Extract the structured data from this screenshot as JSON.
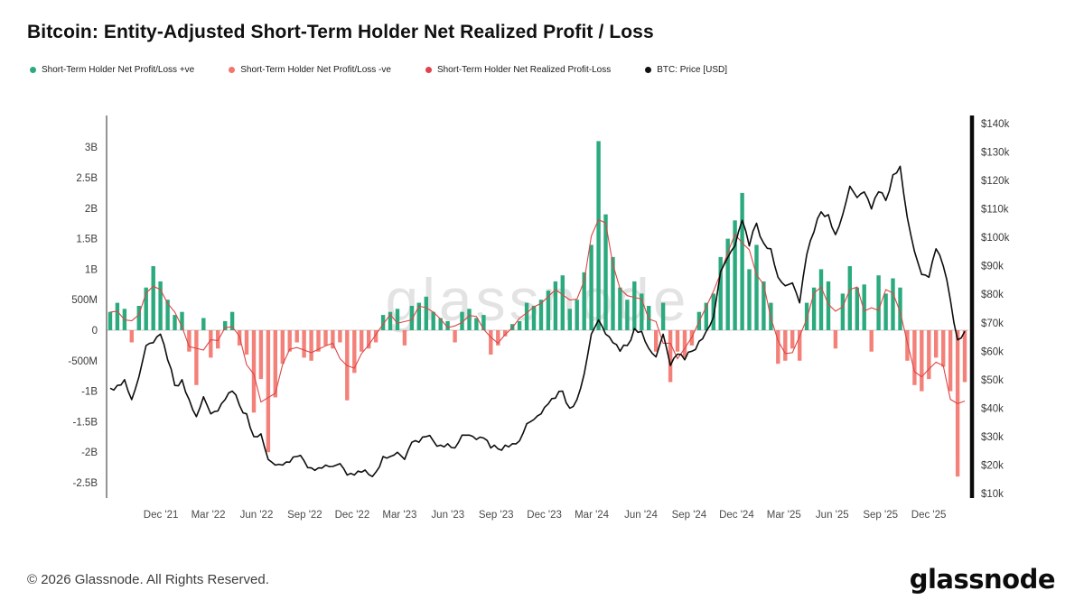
{
  "header": {
    "title": "Bitcoin: Entity-Adjusted Short-Term Holder Net Realized Profit / Loss"
  },
  "legend": {
    "items": [
      {
        "id": "sth-net-profit-loss-positive",
        "label": "Short-Term Holder Net Profit/Loss +ve",
        "color": "#2baa7e"
      },
      {
        "id": "sth-net-profit-loss-negative",
        "label": "Short-Term Holder Net Profit/Loss -ve",
        "color": "#f4756b"
      },
      {
        "id": "sth-net-realized-profit-loss",
        "label": "Short-Term Holder Net Realized Profit-Loss",
        "color": "#e0434d"
      },
      {
        "id": "btc-price",
        "label": "BTC: Price [USD]",
        "color": "#111111"
      }
    ]
  },
  "watermark": "glassnode",
  "footer": {
    "copyright": "© 2026 Glassnode. All Rights Reserved.",
    "logo": "glassnode"
  },
  "chart_data": {
    "type": "bar+line",
    "title": "Bitcoin: Entity-Adjusted Short-Term Holder Net Realized Profit / Loss",
    "x_range": [
      "Aug '21",
      "Feb '26"
    ],
    "grid": "off",
    "legend_position": "top-left",
    "x_ticks": [
      {
        "label": "Dec '21",
        "pos": 0.063
      },
      {
        "label": "Mar '22",
        "pos": 0.118
      },
      {
        "label": "Jun '22",
        "pos": 0.174
      },
      {
        "label": "Sep '22",
        "pos": 0.23
      },
      {
        "label": "Dec '22",
        "pos": 0.285
      },
      {
        "label": "Mar '23",
        "pos": 0.34
      },
      {
        "label": "Jun '23",
        "pos": 0.396
      },
      {
        "label": "Sep '23",
        "pos": 0.452
      },
      {
        "label": "Dec '23",
        "pos": 0.508
      },
      {
        "label": "Mar '24",
        "pos": 0.563
      },
      {
        "label": "Jun '24",
        "pos": 0.62
      },
      {
        "label": "Sep '24",
        "pos": 0.676
      },
      {
        "label": "Dec '24",
        "pos": 0.731
      },
      {
        "label": "Mar '25",
        "pos": 0.786
      },
      {
        "label": "Jun '25",
        "pos": 0.842
      },
      {
        "label": "Sep '25",
        "pos": 0.898
      },
      {
        "label": "Dec '25",
        "pos": 0.954
      }
    ],
    "left_axis": {
      "ticks": [
        "3B",
        "2.5B",
        "2B",
        "1.5B",
        "1B",
        "500M",
        "0",
        "-500M",
        "-1B",
        "-1.5B",
        "-2B",
        "-2.5B"
      ],
      "values_billions": [
        3,
        2.5,
        2,
        1.5,
        1,
        0.5,
        0,
        -0.5,
        -1,
        -1.5,
        -2,
        -2.5
      ],
      "range_billions": [
        -2.75,
        3.5
      ]
    },
    "right_axis": {
      "ticks": [
        "$140k",
        "$130k",
        "$120k",
        "$110k",
        "$100k",
        "$90k",
        "$80k",
        "$70k",
        "$60k",
        "$50k",
        "$40k",
        "$30k",
        "$20k",
        "$10k"
      ],
      "values_usd_k": [
        140,
        130,
        120,
        110,
        100,
        90,
        80,
        70,
        60,
        50,
        40,
        30,
        20,
        10
      ],
      "range_usd_k": [
        8,
        145
      ]
    },
    "series": [
      {
        "name": "Short-Term Holder Net Profit/Loss (+ve green, -ve red bars)",
        "type": "bar",
        "unit": "USD billions",
        "values": [
          0.3,
          0.45,
          0.35,
          -0.2,
          0.4,
          0.7,
          1.05,
          0.8,
          0.5,
          0.25,
          0.3,
          -0.35,
          -0.9,
          0.2,
          -0.45,
          -0.3,
          0.15,
          0.3,
          -0.25,
          -0.4,
          -1.35,
          -0.8,
          -2.0,
          -1.1,
          -0.55,
          -0.35,
          -0.2,
          -0.45,
          -0.5,
          -0.35,
          -0.25,
          -0.3,
          -0.2,
          -1.15,
          -0.7,
          -0.35,
          -0.3,
          -0.2,
          0.25,
          0.3,
          0.35,
          -0.25,
          0.4,
          0.45,
          0.55,
          0.3,
          0.2,
          0.15,
          -0.2,
          0.3,
          0.35,
          0.2,
          0.25,
          -0.4,
          -0.25,
          -0.1,
          0.1,
          0.15,
          0.45,
          0.4,
          0.5,
          0.65,
          0.8,
          0.9,
          0.35,
          0.5,
          0.95,
          1.4,
          3.1,
          1.9,
          1.2,
          0.7,
          0.5,
          0.8,
          0.6,
          0.4,
          -0.35,
          0.45,
          -0.85,
          -0.35,
          -0.45,
          -0.25,
          0.3,
          0.45,
          0.6,
          1.2,
          1.5,
          1.8,
          2.25,
          1.0,
          1.4,
          0.8,
          0.45,
          -0.55,
          -0.5,
          -0.3,
          -0.5,
          0.45,
          0.7,
          1.0,
          0.8,
          -0.3,
          0.6,
          1.05,
          0.7,
          0.75,
          -0.35,
          0.9,
          0.6,
          0.85,
          0.7,
          -0.5,
          -0.9,
          -1.0,
          -0.8,
          -0.45,
          -0.6,
          -1.0,
          -2.4,
          -0.85
        ]
      },
      {
        "name": "Short-Term Holder Net Realized Profit-Loss",
        "type": "line",
        "unit": "USD billions",
        "derived": "3-point moving average of bar series (x0.85)"
      },
      {
        "name": "BTC: Price [USD]",
        "type": "line",
        "unit": "USD thousands",
        "values": [
          47,
          48,
          50,
          43,
          51,
          62,
          63,
          66,
          57,
          48,
          50,
          43,
          37,
          44,
          38,
          39,
          43,
          46,
          41,
          38,
          30,
          31,
          22,
          20,
          20,
          21,
          23,
          21.5,
          19,
          19,
          20,
          19.5,
          20.5,
          16.5,
          16.5,
          17.5,
          16.7,
          17.5,
          23,
          23,
          24.5,
          22,
          28,
          28,
          30,
          28.5,
          27,
          27.5,
          26,
          30.5,
          30.5,
          29,
          29.5,
          26,
          25.7,
          27,
          27.5,
          28.5,
          34.5,
          36,
          38,
          41.5,
          43.5,
          46,
          40,
          43,
          52,
          66,
          71,
          66,
          63,
          60,
          62,
          68,
          67,
          61,
          58,
          66,
          55,
          59,
          57,
          60,
          63.5,
          67,
          72,
          88,
          93,
          97,
          106,
          97,
          105,
          98,
          96,
          86,
          83,
          84,
          77,
          94,
          102,
          109,
          108,
          101,
          108,
          118,
          114,
          116,
          110,
          116,
          113,
          122,
          125,
          107,
          95,
          87,
          86,
          96,
          90,
          78,
          64,
          67
        ]
      }
    ],
    "colors": {
      "positive": "#2baa7e",
      "negative": "#f2776e",
      "realized_line": "#dc4545",
      "price_line": "#0d0d0d",
      "watermark": "#d2d2d2",
      "zero_line": "#c9c9c9",
      "axis_left_line": "#2a2a2a",
      "axis_right_line": "#0a0a0a",
      "tick_text": "#3a3a3a"
    }
  }
}
